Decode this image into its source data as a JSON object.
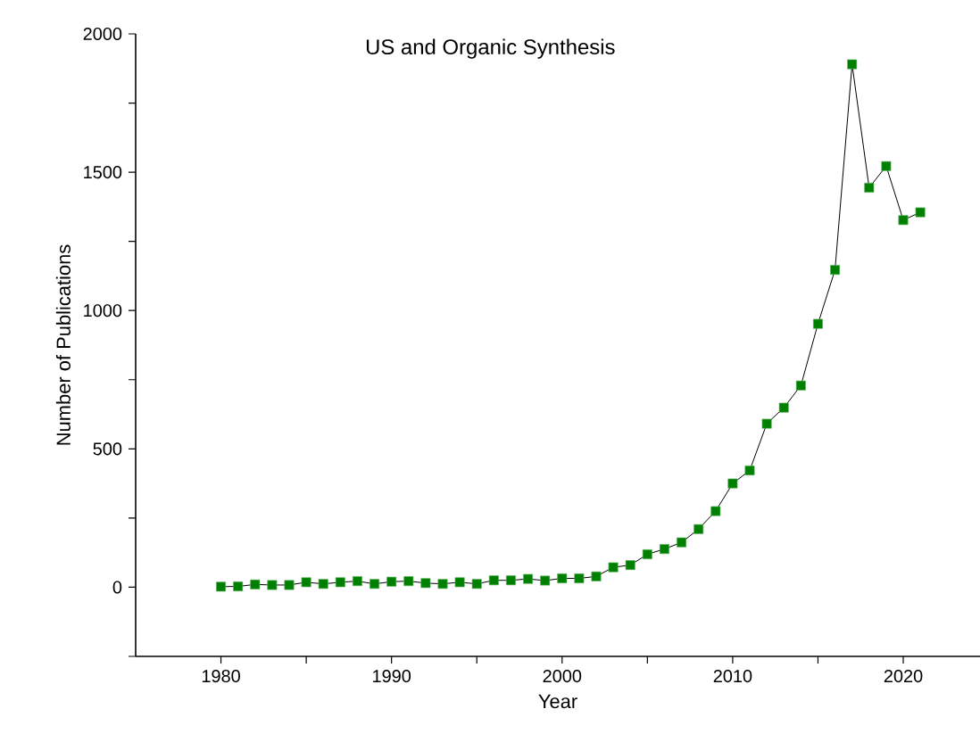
{
  "chart_data": {
    "type": "line",
    "title": "US and Organic Synthesis",
    "xlabel": "Year",
    "ylabel": "Number of Publications",
    "x": [
      1980,
      1981,
      1982,
      1983,
      1984,
      1985,
      1986,
      1987,
      1988,
      1989,
      1990,
      1991,
      1992,
      1993,
      1994,
      1995,
      1996,
      1997,
      1998,
      1999,
      2000,
      2001,
      2002,
      2003,
      2004,
      2005,
      2006,
      2007,
      2008,
      2009,
      2010,
      2011,
      2012,
      2013,
      2014,
      2015,
      2016,
      2017,
      2018,
      2019,
      2020,
      2021
    ],
    "series": [
      {
        "color": "#008000",
        "values": [
          2,
          3,
          10,
          8,
          8,
          18,
          12,
          18,
          22,
          12,
          20,
          22,
          15,
          12,
          18,
          12,
          25,
          25,
          30,
          24,
          32,
          32,
          39,
          72,
          80,
          119,
          138,
          162,
          210,
          275,
          375,
          422,
          591,
          649,
          729,
          952,
          1147,
          1890,
          1444,
          1522,
          1327,
          1355
        ]
      }
    ],
    "marker": "square",
    "line_style": "solid",
    "xlim": [
      1975,
      2024.5
    ],
    "ylim": [
      -250,
      2000
    ],
    "xticks": [
      1980,
      {
        "value": 1985,
        "label": null
      },
      1990,
      {
        "value": 1995,
        "label": null
      },
      2000,
      {
        "value": 2005,
        "label": null
      },
      2010,
      {
        "value": 2015,
        "label": null
      },
      2020
    ],
    "yticks": [
      {
        "value": -250,
        "label": null
      },
      0,
      {
        "value": 250,
        "label": null
      },
      500,
      {
        "value": 750,
        "label": null
      },
      1000,
      {
        "value": 1250,
        "label": null
      },
      1500,
      {
        "value": 1750,
        "label": null
      },
      2000
    ]
  }
}
